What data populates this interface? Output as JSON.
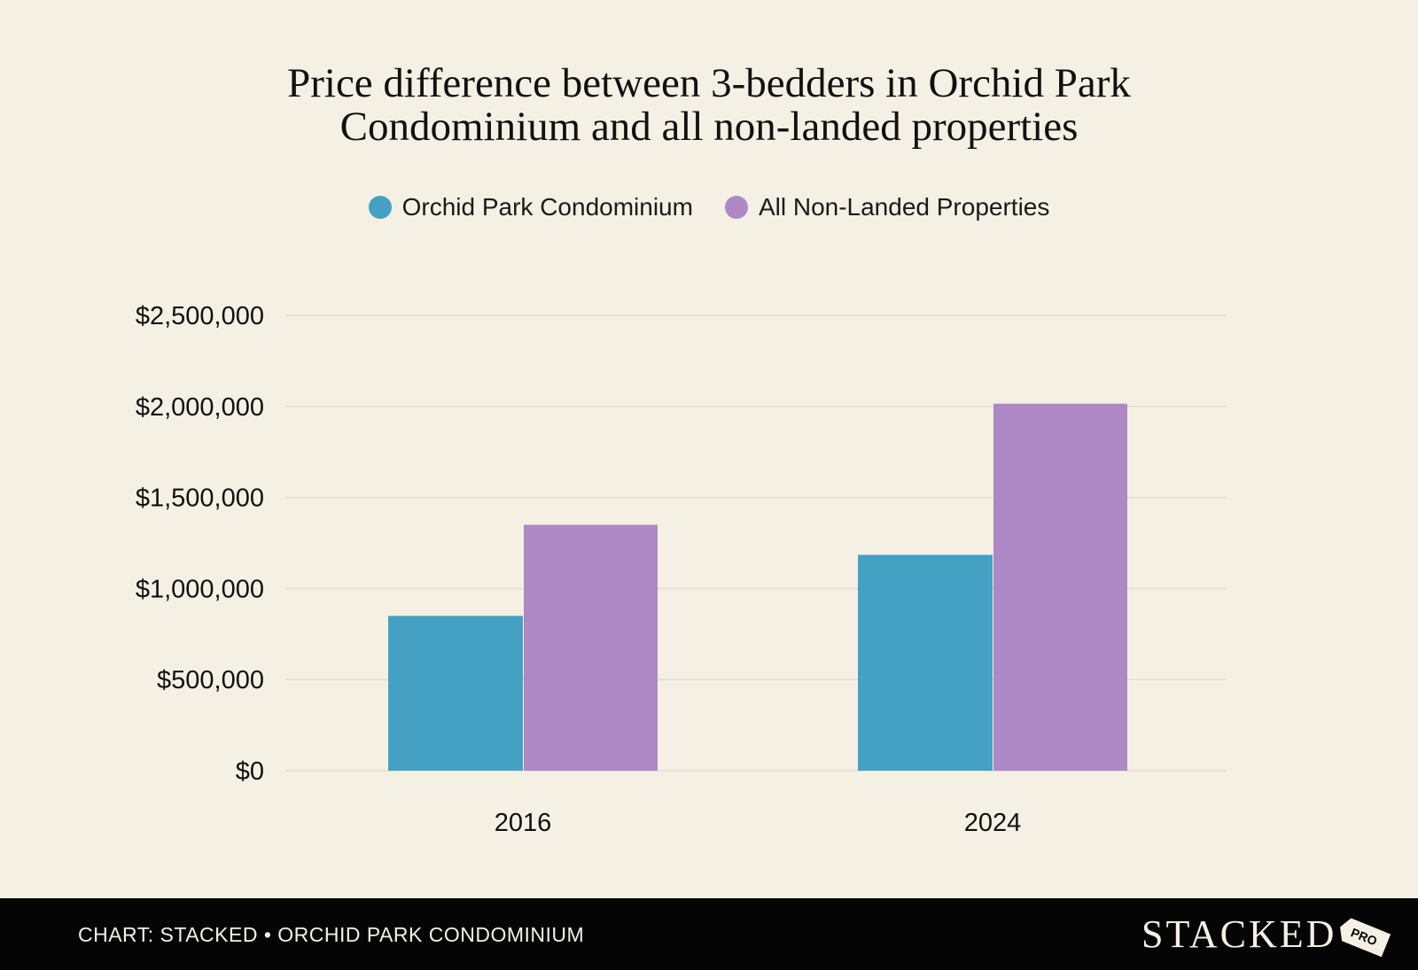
{
  "chart_data": {
    "type": "bar",
    "title_lines": [
      "Price difference between 3-bedders in Orchid Park",
      "Condominium and all non-landed properties"
    ],
    "categories": [
      "2016",
      "2024"
    ],
    "series": [
      {
        "name": "Orchid Park Condominium",
        "color": "#44a1c3",
        "values": [
          850000,
          1185000
        ]
      },
      {
        "name": "All Non-Landed Properties",
        "color": "#ae88c4",
        "values": [
          1350000,
          2015000
        ]
      }
    ],
    "y_ticks": [
      0,
      500000,
      1000000,
      1500000,
      2000000,
      2500000
    ],
    "y_tick_labels": [
      "$0",
      "$500,000",
      "$1,000,000",
      "$1,500,000",
      "$2,000,000",
      "$2,500,000"
    ],
    "ylim": [
      0,
      2500000
    ],
    "xlabel": "",
    "ylabel": "",
    "legend_position": "top-center",
    "grid": true
  },
  "footer": {
    "credit": "CHART: STACKED • ORCHID PARK CONDOMINIUM",
    "logo_text": "STACKED",
    "logo_badge": "PRO"
  }
}
